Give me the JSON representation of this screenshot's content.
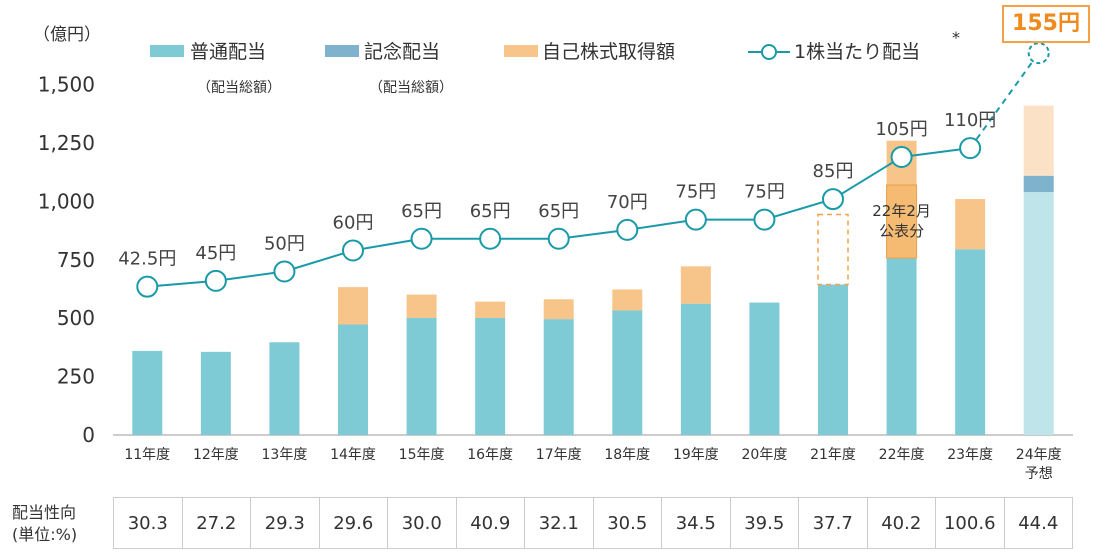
{
  "chart_data": {
    "type": "bar",
    "y_unit": "（億円）",
    "ylim": [
      0,
      1650
    ],
    "y_ticks": [
      0,
      250,
      500,
      750,
      1000,
      1250,
      1500
    ],
    "y_tick_labels": [
      "0",
      "250",
      "500",
      "750",
      "1,000",
      "1,250",
      "1,500"
    ],
    "categories": [
      "11年度",
      "12年度",
      "13年度",
      "14年度",
      "15年度",
      "16年度",
      "17年度",
      "18年度",
      "19年度",
      "20年度",
      "21年度",
      "22年度",
      "23年度",
      "24年度"
    ],
    "category_sub": [
      "",
      "",
      "",
      "",
      "",
      "",
      "",
      "",
      "",
      "",
      "",
      "",
      "",
      "予想"
    ],
    "series": [
      {
        "name": "普通配当",
        "sub": "（配当総額）",
        "color": "#7ecbd6",
        "values": [
          360,
          356,
          397,
          473,
          501,
          501,
          496,
          533,
          562,
          567,
          644,
          780,
          795,
          1040
        ]
      },
      {
        "name": "記念配当",
        "sub": "（配当総額）",
        "color": "#7fb2cc",
        "values": [
          0,
          0,
          0,
          0,
          0,
          0,
          0,
          0,
          0,
          0,
          0,
          0,
          0,
          70
        ]
      },
      {
        "name": "自己株式取得額",
        "color": "#f7c58a",
        "values": [
          0,
          0,
          0,
          160,
          100,
          70,
          85,
          90,
          160,
          0,
          300,
          480,
          215,
          300
        ]
      }
    ],
    "line": {
      "name": "1株当たり配当",
      "marker_note": "*",
      "color": "#1a9aa8",
      "values": [
        635,
        660,
        700,
        790,
        840,
        840,
        840,
        878,
        922,
        922,
        1010,
        1190,
        1228,
        1635
      ],
      "labels": [
        "42.5円",
        "45円",
        "50円",
        "60円",
        "65円",
        "65円",
        "65円",
        "70円",
        "75円",
        "75円",
        "85円",
        "105円",
        "110円",
        "155円"
      ]
    },
    "annotation": {
      "line1": "22年2月",
      "line2": "公表分"
    }
  },
  "payout": {
    "title_line1": "配当性向",
    "title_line2": "(単位:%)",
    "values": [
      "30.3",
      "27.2",
      "29.3",
      "29.6",
      "30.0",
      "40.9",
      "32.1",
      "30.5",
      "34.5",
      "39.5",
      "37.7",
      "40.2",
      "100.6",
      "44.4"
    ]
  }
}
